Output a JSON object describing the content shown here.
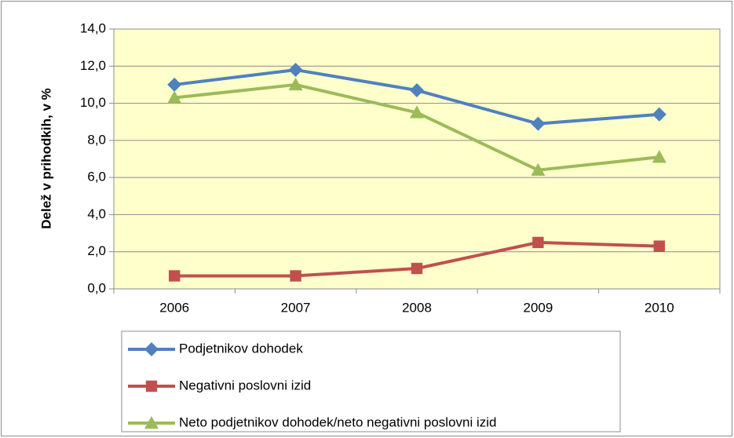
{
  "chart_data": {
    "type": "line",
    "y_label": "Delež v prihodkih, v %",
    "categories": [
      "2006",
      "2007",
      "2008",
      "2009",
      "2010"
    ],
    "series": [
      {
        "name": "Podjetnikov dohodek",
        "color": "#4f81bd",
        "marker": "diamond",
        "values": [
          11.0,
          11.8,
          10.7,
          8.9,
          9.4
        ]
      },
      {
        "name": "Negativni poslovni izid",
        "color": "#c0504d",
        "marker": "square",
        "values": [
          0.7,
          0.7,
          1.1,
          2.5,
          2.3
        ]
      },
      {
        "name": "Neto podjetnikov dohodek/neto negativni poslovni izid",
        "color": "#9bbb59",
        "marker": "triangle",
        "values": [
          10.3,
          11.0,
          9.5,
          6.4,
          7.1
        ]
      }
    ],
    "ylim": [
      0,
      14
    ],
    "yticks": [
      {
        "value": 0,
        "label": "0,0"
      },
      {
        "value": 2,
        "label": "2,0"
      },
      {
        "value": 4,
        "label": "4,0"
      },
      {
        "value": 6,
        "label": "6,0"
      },
      {
        "value": 8,
        "label": "8,0"
      },
      {
        "value": 10,
        "label": "10,0"
      },
      {
        "value": 12,
        "label": "12,0"
      },
      {
        "value": 14,
        "label": "14,0"
      }
    ],
    "grid": true,
    "plot_background": "#ffffcc"
  }
}
